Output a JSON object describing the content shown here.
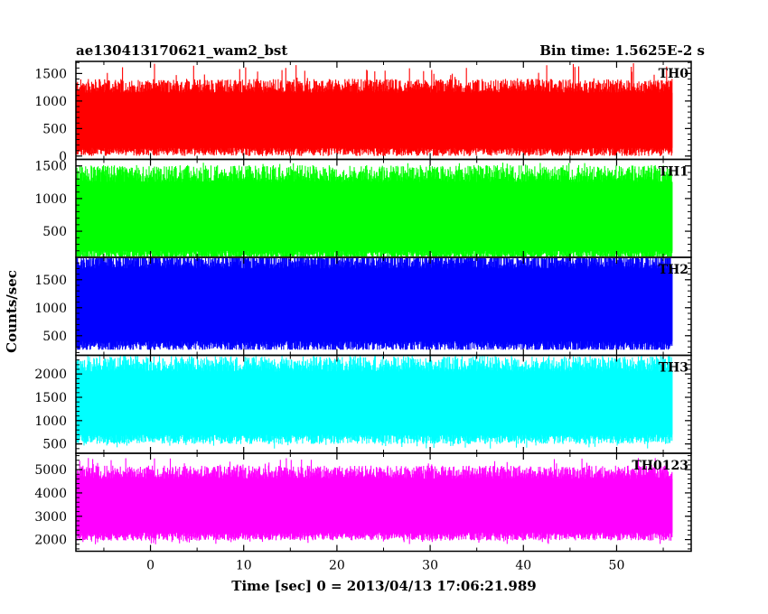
{
  "header": {
    "left_title": "ae130413170621_wam2_bst",
    "right_title": "Bin time: 1.5625E-2 s"
  },
  "chart_data": {
    "type": "line",
    "title": "ae130413170621_wam2_bst",
    "subtitle": "Bin time: 1.5625E-2 s",
    "xlabel": "Time [sec] 0 = 2013/04/13 17:06:21.989",
    "ylabel": "Counts/sec",
    "xlim": [
      -8,
      58
    ],
    "x_range": [
      -8,
      56
    ],
    "bin_time": 0.015625,
    "x_ticks": [
      0,
      10,
      20,
      30,
      40,
      50
    ],
    "grid": false,
    "panels": [
      {
        "name": "TH0",
        "color": "#ff0000",
        "ylim": [
          -60,
          1720
        ],
        "y_ticks": [
          0,
          500,
          1000,
          1500
        ],
        "typical_range": [
          150,
          1150
        ],
        "max": 1700,
        "min": 0
      },
      {
        "name": "TH1",
        "color": "#00ff00",
        "ylim": [
          100,
          1600
        ],
        "y_ticks": [
          500,
          1000,
          1500
        ],
        "typical_range": [
          200,
          1250
        ],
        "max": 1550,
        "min": 100
      },
      {
        "name": "TH2",
        "color": "#0000ff",
        "ylim": [
          150,
          1900
        ],
        "y_ticks": [
          500,
          1000,
          1500
        ],
        "typical_range": [
          400,
          1700
        ],
        "max": 1900,
        "min": 250
      },
      {
        "name": "TH3",
        "color": "#00ffff",
        "ylim": [
          300,
          2400
        ],
        "y_ticks": [
          500,
          1000,
          1500,
          2000
        ],
        "typical_range": [
          700,
          2050
        ],
        "max": 2400,
        "min": 400
      },
      {
        "name": "TH0123",
        "color": "#ff00ff",
        "ylim": [
          1500,
          5700
        ],
        "y_ticks": [
          2000,
          3000,
          4000,
          5000
        ],
        "typical_range": [
          2300,
          4600
        ],
        "max": 5500,
        "min": 1800
      }
    ]
  }
}
